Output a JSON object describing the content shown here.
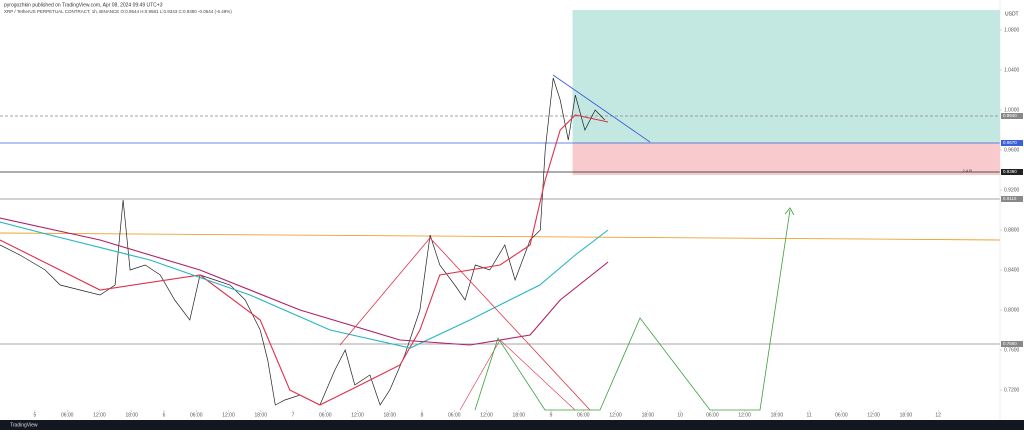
{
  "header": {
    "author": "pyrogozhkin published on TradingView.com, Apr 08, 2024 09:49 UTC+3",
    "symbol": "XRP / TetherUS PERPETUAL CONTRACT, 1h, BINANCE  O:0.9544 H:0.9581 L:0.9343 C:0.9390 -0.0644 (-6.49%)",
    "currency": "USDT"
  },
  "footer": {
    "brand": "TradingView"
  },
  "chart_data": {
    "type": "line",
    "xlim": [
      -6.5,
      179.5
    ],
    "ylim": [
      0.7,
      1.1
    ],
    "xticks": [
      {
        "value": 0,
        "label": "5"
      },
      {
        "value": 6,
        "label": "06:00"
      },
      {
        "value": 12,
        "label": "12:00"
      },
      {
        "value": 18,
        "label": "18:00"
      },
      {
        "value": 24,
        "label": "6"
      },
      {
        "value": 30,
        "label": "06:00"
      },
      {
        "value": 36,
        "label": "12:00"
      },
      {
        "value": 42,
        "label": "18:00"
      },
      {
        "value": 48,
        "label": "7"
      },
      {
        "value": 54,
        "label": "06:00"
      },
      {
        "value": 60,
        "label": "12:00"
      },
      {
        "value": 66,
        "label": "18:00"
      },
      {
        "value": 72,
        "label": "8"
      },
      {
        "value": 78,
        "label": "06:00"
      },
      {
        "value": 84,
        "label": "12:00"
      },
      {
        "value": 90,
        "label": "18:00"
      },
      {
        "value": 96,
        "label": "9"
      },
      {
        "value": 102,
        "label": "06:00"
      },
      {
        "value": 108,
        "label": "12:00"
      },
      {
        "value": 114,
        "label": "18:00"
      },
      {
        "value": 120,
        "label": "10"
      },
      {
        "value": 126,
        "label": "06:00"
      },
      {
        "value": 132,
        "label": "12:00"
      },
      {
        "value": 138,
        "label": "18:00"
      },
      {
        "value": 144,
        "label": "11"
      },
      {
        "value": 150,
        "label": "06:00"
      },
      {
        "value": 156,
        "label": "12:00"
      },
      {
        "value": 162,
        "label": "18:00"
      },
      {
        "value": 168,
        "label": "12"
      }
    ],
    "yticks": [
      {
        "value": 0.72,
        "label": "0.7200"
      },
      {
        "value": 0.76,
        "label": "0.7600"
      },
      {
        "value": 0.8,
        "label": "0.8000"
      },
      {
        "value": 0.84,
        "label": "0.8400"
      },
      {
        "value": 0.88,
        "label": "0.8800"
      },
      {
        "value": 0.92,
        "label": "0.9200"
      },
      {
        "value": 0.96,
        "label": "0.9600"
      },
      {
        "value": 1.0,
        "label": "1.0000"
      },
      {
        "value": 1.04,
        "label": "1.0400"
      },
      {
        "value": 1.08,
        "label": "1.0800"
      }
    ],
    "series": [
      {
        "color": "#222222",
        "x": [
          -6.5,
          -2.8,
          1.9,
          4.7,
          8.4,
          12.1,
          14.9,
          16.4,
          17.7,
          20.5,
          23.3,
          26.0,
          28.8,
          30.7,
          33.5,
          36.3,
          39.1,
          41.9,
          43.3,
          44.7,
          46.5,
          49.3,
          53.0,
          55.8,
          57.7,
          59.5,
          62.3,
          64.2,
          66.0,
          68.8,
          71.6,
          73.5,
          75.3,
          78.1,
          80.0,
          81.9,
          84.6,
          87.4,
          89.3,
          92.1,
          94.0,
          94.9,
          96.4,
          97.7,
          99.2,
          100.5,
          102.3,
          104.2,
          106.0
        ],
        "values": [
          0.865,
          0.855,
          0.84,
          0.825,
          0.82,
          0.815,
          0.825,
          0.91,
          0.84,
          0.845,
          0.835,
          0.81,
          0.79,
          0.835,
          0.83,
          0.825,
          0.81,
          0.78,
          0.75,
          0.705,
          0.71,
          0.715,
          0.705,
          0.74,
          0.76,
          0.725,
          0.735,
          0.705,
          0.72,
          0.755,
          0.8,
          0.875,
          0.845,
          0.825,
          0.81,
          0.845,
          0.84,
          0.865,
          0.83,
          0.87,
          0.88,
          0.96,
          1.032,
          1.01,
          0.97,
          1.015,
          0.98,
          1.0,
          0.99
        ]
      },
      {
        "color": "#e0304a",
        "x": [
          -6.5,
          12.1,
          30.7,
          41.9,
          47.4,
          53.0,
          60.5,
          67.9,
          71.6,
          75.3,
          86.5,
          92.1,
          94.9,
          97.7,
          100.5,
          106.6
        ],
        "values": [
          0.87,
          0.82,
          0.835,
          0.79,
          0.72,
          0.705,
          0.725,
          0.745,
          0.78,
          0.835,
          0.845,
          0.865,
          0.93,
          0.98,
          0.995,
          0.988
        ]
      },
      {
        "color": "#26b5c4",
        "x": [
          -6.5,
          2.8,
          21.4,
          40.0,
          54.9,
          69.8,
          80.9,
          93.9,
          100.5,
          106.6
        ],
        "values": [
          0.888,
          0.875,
          0.85,
          0.815,
          0.78,
          0.762,
          0.79,
          0.825,
          0.855,
          0.88
        ]
      },
      {
        "color": "#b0206a",
        "x": [
          -6.5,
          12.1,
          30.7,
          49.3,
          67.9,
          80.9,
          92.1,
          97.7,
          106.6
        ],
        "values": [
          0.892,
          0.87,
          0.84,
          0.8,
          0.77,
          0.765,
          0.775,
          0.81,
          0.848
        ]
      }
    ],
    "levels": [
      {
        "value": 0.994,
        "label": "0.9940",
        "color": "#888888",
        "dash": true
      },
      {
        "value": 0.967,
        "label": "0.9670",
        "color": "#3a5fd9"
      },
      {
        "value": 0.938,
        "label": "0.9380",
        "color": "#222222"
      },
      {
        "value": 0.911,
        "label": "0.9110",
        "color": "#888888"
      },
      {
        "value": 0.766,
        "label": "0.7660",
        "color": "#888888"
      }
    ],
    "trend": {
      "start": 0.877,
      "end": 0.87,
      "color": "#f0a030"
    },
    "position": {
      "start": 100.0,
      "target": 1.1,
      "entry": 0.967,
      "stop": 0.935,
      "stop_label": "0.9350",
      "ratio": "2.4 R"
    }
  }
}
